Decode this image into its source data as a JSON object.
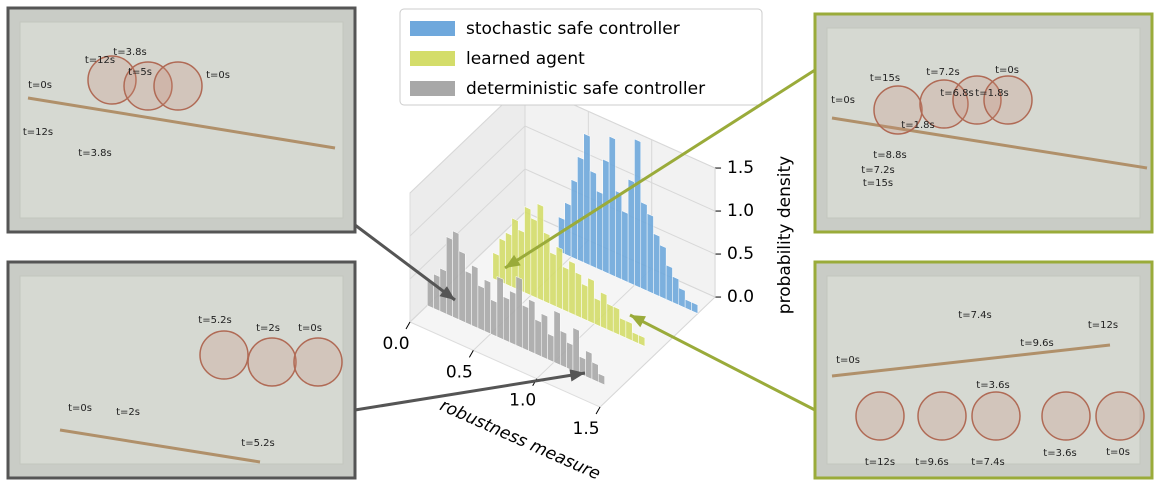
{
  "chart_data": {
    "type": "histogram3d",
    "xlabel": "robustness measure",
    "zlabel": "probability density",
    "bins": [
      0,
      0.05,
      0.1,
      0.15,
      0.2,
      0.25,
      0.3,
      0.35,
      0.4,
      0.45,
      0.5,
      0.55,
      0.6,
      0.65,
      0.7,
      0.75,
      0.8,
      0.85,
      0.9,
      0.95,
      1.0,
      1.05,
      1.1,
      1.15,
      1.2,
      1.25,
      1.3,
      1.35,
      1.4,
      1.45,
      1.5
    ],
    "series": [
      {
        "name": "stochastic safe controller",
        "color": "#6fa8dc",
        "values": [
          0,
          0,
          0,
          0,
          0,
          0,
          0,
          0,
          0.4,
          0.6,
          0.9,
          1.2,
          1.5,
          1.1,
          0.9,
          1.3,
          1.6,
          1.0,
          0.8,
          1.2,
          1.7,
          1.0,
          0.9,
          0.7,
          0.6,
          0.4,
          0.3,
          0.2,
          0.1,
          0.1
        ]
      },
      {
        "name": "learned agent",
        "color": "#d4dd6a",
        "values": [
          0,
          0,
          0,
          0,
          0.3,
          0.5,
          0.6,
          0.8,
          0.7,
          1.0,
          0.9,
          1.1,
          0.8,
          0.6,
          0.7,
          0.5,
          0.6,
          0.5,
          0.4,
          0.5,
          0.3,
          0.4,
          0.3,
          0.3,
          0.2,
          0.2,
          0.1,
          0.1,
          0,
          0
        ]
      },
      {
        "name": "deterministic safe controller",
        "color": "#a8a8a8",
        "values": [
          0.3,
          0.4,
          0.5,
          0.9,
          1.0,
          0.8,
          0.6,
          0.7,
          0.5,
          0.6,
          0.4,
          0.7,
          0.5,
          0.6,
          0.8,
          0.5,
          0.6,
          0.4,
          0.5,
          0.3,
          0.6,
          0.4,
          0.3,
          0.5,
          0.2,
          0.3,
          0.2,
          0.1,
          0,
          0
        ]
      }
    ],
    "xlim": [
      0,
      1.5
    ],
    "xticks": [
      {
        "value": 0,
        "label": "0.0"
      },
      {
        "value": 0.5,
        "label": "0.5"
      },
      {
        "value": 1,
        "label": "1.0"
      },
      {
        "value": 1.5,
        "label": "1.5"
      }
    ],
    "zlim": [
      0,
      1.5
    ],
    "zticks": [
      {
        "value": 0,
        "label": "0.0"
      },
      {
        "value": 0.5,
        "label": "0.5"
      },
      {
        "value": 1,
        "label": "1.0"
      },
      {
        "value": 1.5,
        "label": "1.5"
      }
    ],
    "grid": true
  },
  "panels": [
    {
      "labels": [
        "t=12s",
        "t=3.8s",
        "t=5s",
        "t=0s",
        "t=0s",
        "t=12s",
        "t=3.8s"
      ]
    },
    {
      "labels": [
        "t=5.2s",
        "t=2s",
        "t=0s",
        "t=0s",
        "t=2s",
        "t=5.2s"
      ]
    },
    {
      "labels": [
        "t=15s",
        "t=7.2s",
        "t=0s",
        "t=6.8s",
        "t=1.8s",
        "t=0s",
        "t=1.8s",
        "t=8.8s",
        "t=7.2s",
        "t=15s"
      ]
    },
    {
      "labels": [
        "t=7.4s",
        "t=9.6s",
        "t=12s",
        "t=0s",
        "t=3.6s",
        "t=12s",
        "t=9.6s",
        "t=7.4s",
        "t=3.6s",
        "t=0s"
      ]
    }
  ]
}
